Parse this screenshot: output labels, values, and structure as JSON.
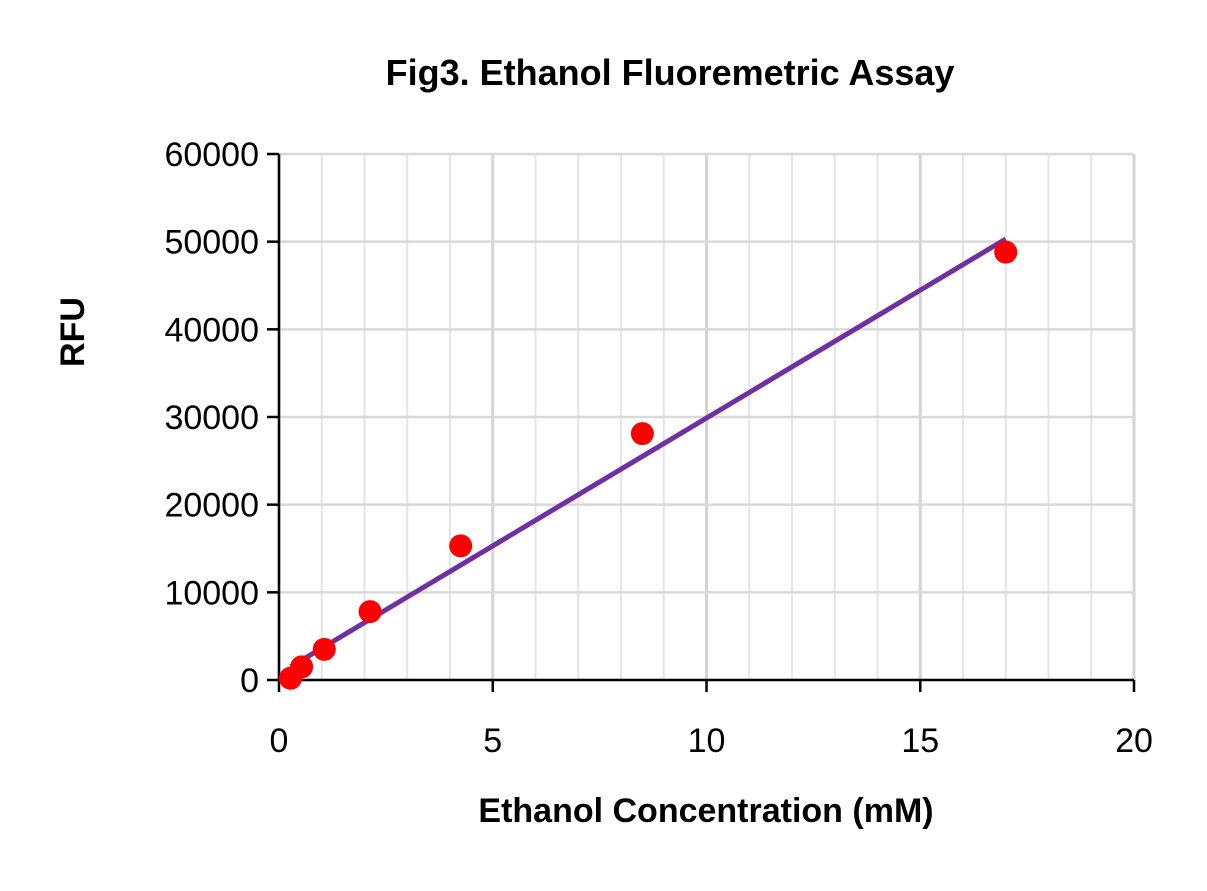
{
  "chart_data": {
    "type": "scatter",
    "title": "Fig3. Ethanol Fluoremetric Assay",
    "xlabel": "Ethanol Concentration (mM)",
    "ylabel": "RFU",
    "xlim": [
      0,
      20
    ],
    "ylim": [
      0,
      60000
    ],
    "x_ticks": [
      "0",
      "5",
      "10",
      "15",
      "20"
    ],
    "y_ticks": [
      "0",
      "10000",
      "20000",
      "30000",
      "40000",
      "50000",
      "60000"
    ],
    "x_tick_values": [
      0,
      5,
      10,
      15,
      20
    ],
    "y_tick_values": [
      0,
      10000,
      20000,
      30000,
      40000,
      50000,
      60000
    ],
    "x_minor_step": 1,
    "y_minor_step": 10000,
    "grid": true,
    "legend": "none",
    "series": [
      {
        "values_x": [
          0.27,
          0.53,
          1.06,
          2.13,
          4.25,
          8.5,
          17.0
        ],
        "values_y": [
          200,
          1500,
          3500,
          7800,
          15300,
          28100,
          48800
        ],
        "marker": "circle",
        "color": "#ff0000"
      }
    ],
    "trendline": {
      "type": "linear",
      "x_range": [
        0.27,
        17.0
      ],
      "y_range": [
        1500,
        50300
      ],
      "color": "#7030a0"
    }
  }
}
